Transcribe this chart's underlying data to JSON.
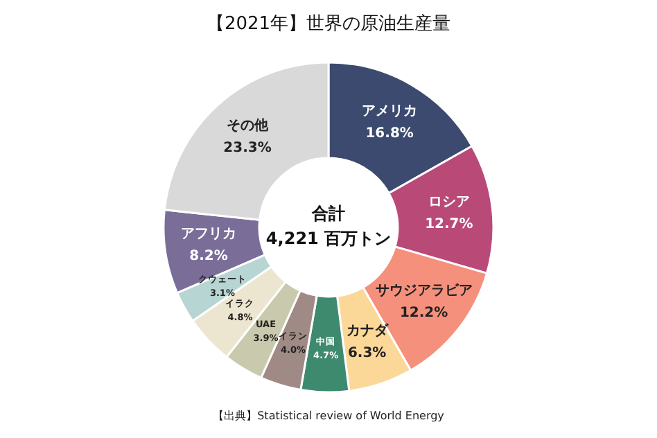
{
  "chart_data": {
    "type": "donut",
    "title": "【2021年】世界の原油生産量",
    "categories": [
      "アメリカ",
      "ロシア",
      "サウジアラビア",
      "カナダ",
      "中国",
      "イラン",
      "UAE",
      "イラク",
      "クウェート",
      "アフリカ",
      "その他"
    ],
    "values": [
      16.8,
      12.7,
      12.2,
      6.3,
      4.7,
      4.0,
      3.9,
      4.8,
      3.1,
      8.2,
      23.3
    ],
    "colors": [
      "#3b4a6e",
      "#b94a78",
      "#f4907c",
      "#fbd898",
      "#3e8a6e",
      "#a08a86",
      "#c9c9ad",
      "#ece6d0",
      "#b7d5d3",
      "#7a6e99",
      "#d9d9d9"
    ],
    "value_labels": [
      "16.8%",
      "12.7%",
      "12.2%",
      "6.3%",
      "4.7%",
      "4.0%",
      "3.9%",
      "4.8%",
      "3.1%",
      "8.2%",
      "23.3%"
    ],
    "annotations": [
      "合計",
      "4,221 百万トン",
      "【出典】Statistical review of World Energy"
    ]
  }
}
